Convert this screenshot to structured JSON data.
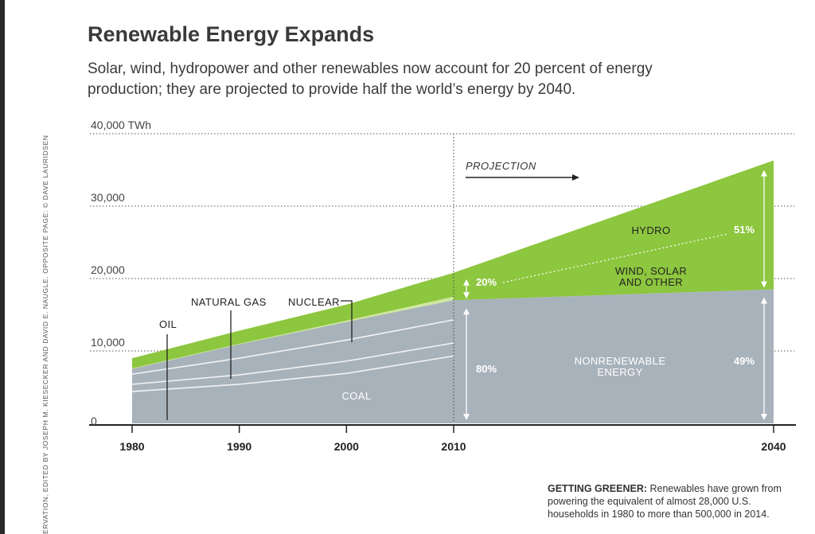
{
  "page": {
    "title": "Renewable Energy Expands",
    "subtitle": "Solar, wind, hydropower and other renewables now account for 20 percent of energy production; they are projected to provide half the world’s energy by 2040.",
    "credit": "ERVATION, EDITED BY JOSEPH M. KIESECKER AND DAVID E. NAUGLE. OPPOSITE PAGE: © DAVE LAURIDSEN",
    "caption_lead": "GETTING GREENER:",
    "caption_body": " Renewables have grown from powering the equivalent of almost 28,000 U.S. households in 1980 to more than 500,000 in 2014."
  },
  "chart_data": {
    "type": "area",
    "title": "Renewable Energy Expands",
    "ylabel": "",
    "xlabel": "",
    "ylim": [
      0,
      40000
    ],
    "y_ticks": [
      {
        "value": 0,
        "label": "0"
      },
      {
        "value": 10000,
        "label": "10,000"
      },
      {
        "value": 20000,
        "label": "20,000"
      },
      {
        "value": 30000,
        "label": "30,000"
      },
      {
        "value": 40000,
        "label": "40,000 TWh"
      }
    ],
    "x_ticks": [
      {
        "value": 1980,
        "label": "1980"
      },
      {
        "value": 1990,
        "label": "1990"
      },
      {
        "value": 2000,
        "label": "2000"
      },
      {
        "value": 2010,
        "label": "2010"
      },
      {
        "value": 2040,
        "label": "2040"
      }
    ],
    "x": [
      1980,
      1990,
      2000,
      2010
    ],
    "series": [
      {
        "name": "COAL",
        "values": [
          4400,
          5400,
          6900,
          9300
        ],
        "color": "#a8b2bb"
      },
      {
        "name": "OIL",
        "values": [
          1000,
          1300,
          1700,
          1800
        ],
        "color": "#a8b2bb"
      },
      {
        "name": "NATURAL GAS",
        "values": [
          1400,
          2300,
          2900,
          3200
        ],
        "color": "#a8b2bb"
      },
      {
        "name": "NUCLEAR",
        "values": [
          700,
          1900,
          2500,
          2700
        ],
        "color": "#a8b2bb"
      },
      {
        "name": "WIND, SOLAR AND OTHER",
        "values": [
          100,
          100,
          200,
          500
        ],
        "color": "#cfe7a0"
      },
      {
        "name": "HYDRO",
        "values": [
          1400,
          1800,
          2200,
          3300
        ],
        "color": "#8dc63f"
      }
    ],
    "projection": {
      "label": "PROJECTION",
      "start_year": 2010,
      "end_year": 2040,
      "nonrenewable_2040": 18500,
      "total_2040": 36300
    },
    "nonrenewable_label": "NONRENEWABLE ENERGY",
    "annotations": [
      {
        "text": "80%"
      },
      {
        "text": "20%"
      },
      {
        "text": "49%"
      },
      {
        "text": "51%"
      }
    ],
    "colors": {
      "nonrenewable": "#a8b2bb",
      "renewable": "#8dc63f",
      "renewable_light": "#cfe7a0",
      "axis": "#222222",
      "grid": "#555555"
    }
  }
}
